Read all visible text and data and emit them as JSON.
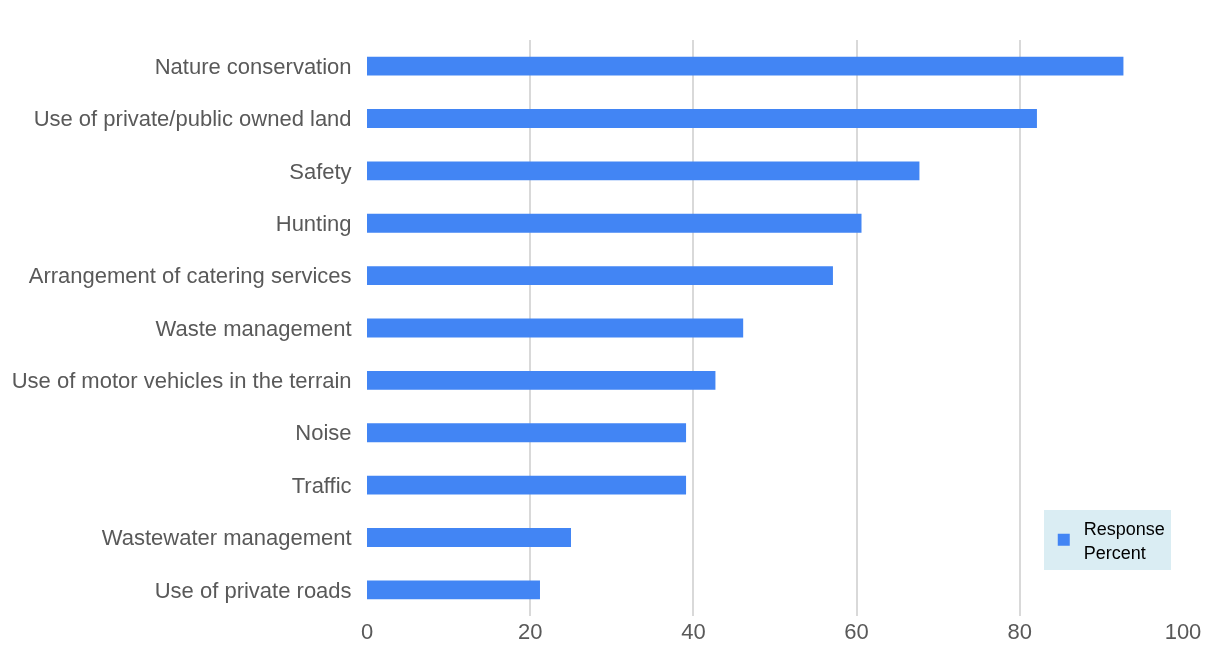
{
  "chart_data": {
    "type": "bar",
    "orientation": "horizontal",
    "categories": [
      "Nature conservation",
      "Use of private/public owned land",
      "Safety",
      "Hunting",
      "Arrangement of catering services",
      "Waste management",
      "Use of motor vehicles in the terrain",
      "Noise",
      "Traffic",
      "Wastewater management",
      "Use of private roads"
    ],
    "series": [
      {
        "name": "Response Percent",
        "color": "#4285f4",
        "values": [
          92.7,
          82.1,
          67.7,
          60.6,
          57.1,
          46.1,
          42.7,
          39.1,
          39.1,
          25.0,
          21.2
        ]
      }
    ],
    "xlim": [
      0,
      100
    ],
    "xticks": [
      0,
      20,
      40,
      60,
      80,
      100
    ],
    "grid": "x",
    "legend": "bottom right"
  }
}
